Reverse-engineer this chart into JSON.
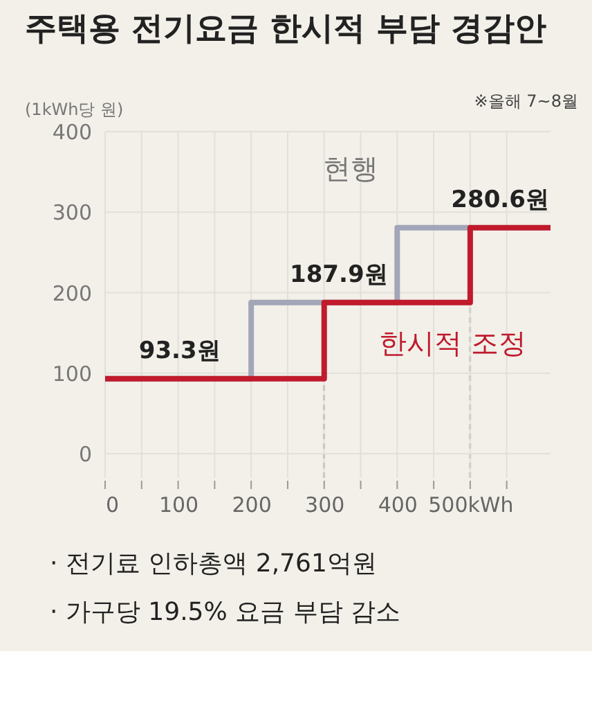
{
  "chart_data": {
    "type": "step",
    "title": "주택용 전기요금 한시적 부담 경감안",
    "subtitle": "※올해 7~8월",
    "ylabel": "(1kWh당 원)",
    "series": [
      {
        "name": "현행",
        "color": "#a3a6b8",
        "x": [
          0,
          200,
          400,
          500
        ],
        "values": [
          93.3,
          187.9,
          280.6,
          280.6
        ]
      },
      {
        "name": "한시적 조정",
        "color": "#c01a2c",
        "x": [
          0,
          300,
          500,
          610
        ],
        "values": [
          93.3,
          187.9,
          280.6,
          280.6
        ]
      }
    ],
    "xlim": [
      0,
      610
    ],
    "ylim": [
      -30,
      400
    ],
    "xticks": [
      0,
      {
        "value": 50,
        "label": null
      },
      100,
      {
        "value": 150,
        "label": null
      },
      200,
      {
        "value": 250,
        "label": null
      },
      300,
      {
        "value": 350,
        "label": null
      },
      400,
      {
        "value": 450,
        "label": null
      },
      {
        "value": 500,
        "label": "500kWh"
      },
      {
        "value": 550,
        "label": null
      }
    ],
    "yticks": [
      0,
      100,
      200,
      300,
      400
    ],
    "grid": true,
    "line_style": "solid",
    "ref_lines": [
      {
        "axis": "x",
        "value": 300,
        "line_style": "dashed",
        "color": "#555555"
      },
      {
        "axis": "x",
        "value": 500,
        "line_style": "dashed",
        "color": "#555555"
      }
    ],
    "annotations": [
      {
        "text": "93.3원",
        "x": 102,
        "y": 93.3
      },
      {
        "text": "187.9원",
        "x": 320,
        "y": 187.9
      },
      {
        "text": "280.6원",
        "x": 541,
        "y": 280.6
      },
      "· 전기료 인하총액 2,761억원",
      "· 가구당 19.5% 요금 부담 감소"
    ]
  }
}
